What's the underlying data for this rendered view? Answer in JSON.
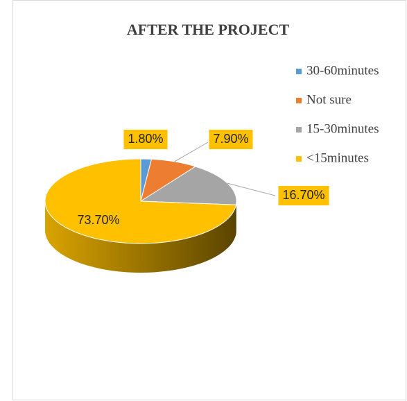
{
  "chart_data": {
    "type": "pie3d",
    "title": "AFTER THE PROJECT",
    "categories": [
      "30-60minutes",
      "Not sure",
      "15-30minutes",
      "<15minutes"
    ],
    "values": [
      1.8,
      7.9,
      16.7,
      73.7
    ],
    "value_labels": [
      "1.80%",
      "7.90%",
      "16.70%",
      "73.70%"
    ],
    "colors": [
      "#5b9bd5",
      "#ed7d31",
      "#a5a5a5",
      "#ffc000"
    ],
    "legend": "right"
  }
}
